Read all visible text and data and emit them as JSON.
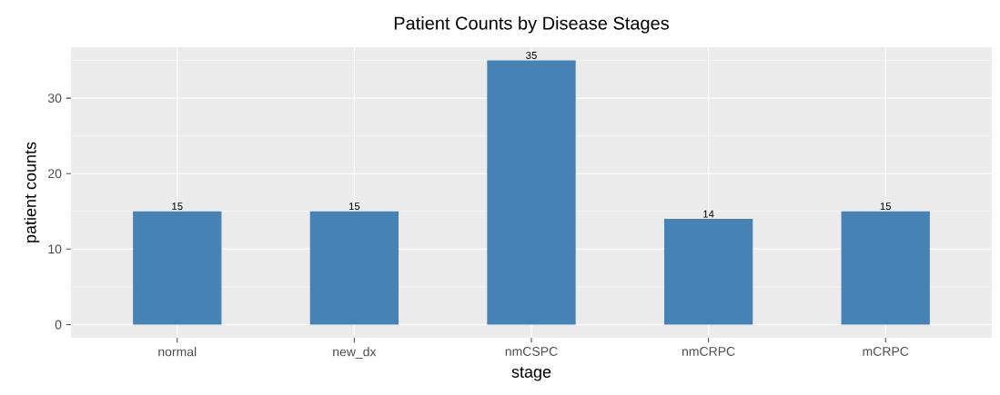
{
  "chart_data": {
    "type": "bar",
    "title": "Patient Counts by Disease Stages",
    "xlabel": "stage",
    "ylabel": "patient counts",
    "categories": [
      "normal",
      "new_dx",
      "nmCSPC",
      "nmCRPC",
      "mCRPC"
    ],
    "values": [
      15,
      15,
      35,
      14,
      15
    ],
    "color": "#4682b4",
    "ylim": [
      -1.75,
      36.75
    ],
    "yticks": [
      0,
      {
        "value": 5,
        "label": null
      },
      10,
      {
        "value": 15,
        "label": null
      },
      20,
      {
        "value": 25,
        "label": null
      },
      30,
      {
        "value": 35,
        "label": null
      }
    ],
    "grid": true,
    "data_labels": true
  }
}
